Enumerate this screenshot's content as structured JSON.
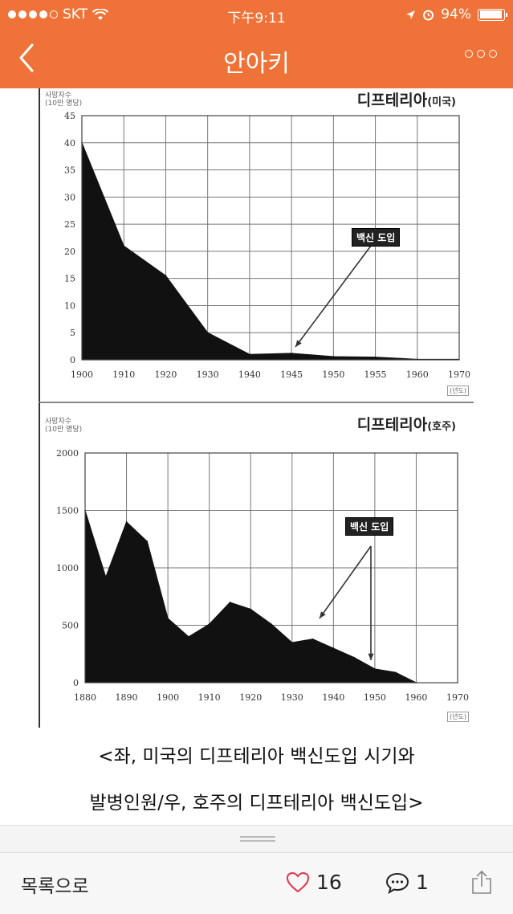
{
  "status_bar": {
    "carrier": "SKT",
    "time": "下午9:11",
    "battery": "94%",
    "battery_level": 0.94
  },
  "nav": {
    "title": "안아키",
    "back_icon": "chevron-left-icon",
    "more_icon": "more-dots-icon"
  },
  "chart_data": [
    {
      "type": "area",
      "title": "디프테리아",
      "title_sub": "(미국)",
      "ylabel": "사망자수\n(10만 명당)",
      "xunit": "(년도)",
      "annotation": "백신 도입",
      "x_ticks": [
        "1900",
        "1910",
        "1920",
        "1930",
        "1940",
        "1945",
        "1950",
        "1955",
        "1960",
        "1970"
      ],
      "y_ticks": [
        "0",
        "5",
        "10",
        "15",
        "20",
        "25",
        "30",
        "35",
        "40",
        "45"
      ],
      "ylim": [
        0,
        45
      ],
      "x": [
        1900,
        1910,
        1920,
        1930,
        1940,
        1945,
        1950,
        1955,
        1960,
        1970
      ],
      "values": [
        40,
        21,
        15.5,
        5,
        1,
        1.2,
        0.6,
        0.5,
        0.1,
        0.1
      ]
    },
    {
      "type": "area",
      "title": "디프테리아",
      "title_sub": "(호주)",
      "ylabel": "사망자수\n(10만 명당)",
      "xunit": "(년도)",
      "annotation": "백신 도입",
      "x_ticks": [
        "1880",
        "1890",
        "1900",
        "1910",
        "1920",
        "1930",
        "1940",
        "1950",
        "1960",
        "1970"
      ],
      "y_ticks": [
        "0",
        "500",
        "1000",
        "1500",
        "2000"
      ],
      "ylim": [
        0,
        2000
      ],
      "x": [
        1880,
        1885,
        1890,
        1895,
        1900,
        1905,
        1910,
        1915,
        1920,
        1925,
        1930,
        1935,
        1940,
        1945,
        1950,
        1955,
        1960,
        1970
      ],
      "values": [
        1500,
        920,
        1400,
        1230,
        560,
        400,
        510,
        700,
        640,
        510,
        350,
        380,
        300,
        220,
        120,
        90,
        0,
        0
      ]
    }
  ],
  "caption": {
    "line1": "<좌, 미국의 디프테리아 백신도입 시기와",
    "line2": "발병인원/우, 호주의 디프테리아 백신도입>"
  },
  "bottom_bar": {
    "list_label": "목록으로",
    "like_count": "16",
    "comment_count": "1",
    "like_icon": "heart-icon",
    "comment_icon": "comment-icon",
    "share_icon": "share-icon"
  }
}
